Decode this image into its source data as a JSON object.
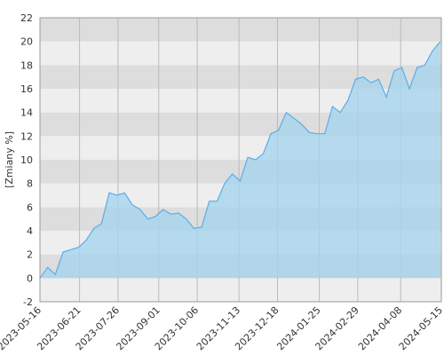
{
  "chart_data": {
    "type": "area",
    "y_label": "[Zmiany %]",
    "x": [
      "2023-05-16",
      "2023-05-23",
      "2023-05-30",
      "2023-06-06",
      "2023-06-13",
      "2023-06-20",
      "2023-06-27",
      "2023-07-04",
      "2023-07-11",
      "2023-07-18",
      "2023-07-25",
      "2023-08-01",
      "2023-08-08",
      "2023-08-15",
      "2023-08-22",
      "2023-08-29",
      "2023-09-05",
      "2023-09-12",
      "2023-09-19",
      "2023-09-26",
      "2023-10-03",
      "2023-10-10",
      "2023-10-17",
      "2023-10-24",
      "2023-10-31",
      "2023-11-07",
      "2023-11-14",
      "2023-11-21",
      "2023-11-28",
      "2023-12-05",
      "2023-12-12",
      "2023-12-19",
      "2023-12-26",
      "2024-01-02",
      "2024-01-09",
      "2024-01-16",
      "2024-01-23",
      "2024-01-30",
      "2024-02-06",
      "2024-02-13",
      "2024-02-20",
      "2024-02-27",
      "2024-03-05",
      "2024-03-12",
      "2024-03-19",
      "2024-03-26",
      "2024-04-02",
      "2024-04-09",
      "2024-04-16",
      "2024-04-23",
      "2024-04-30",
      "2024-05-07",
      "2024-05-14"
    ],
    "series": [
      {
        "color": "#5aaeea",
        "fill": "#a6d3ec",
        "values": [
          0,
          0.9,
          0.3,
          2.2,
          2.4,
          2.6,
          3.2,
          4.2,
          4.6,
          7.2,
          7.0,
          7.2,
          6.2,
          5.8,
          5.0,
          5.2,
          5.8,
          5.4,
          5.5,
          5.0,
          4.2,
          4.3,
          6.5,
          6.5,
          8.0,
          8.8,
          8.2,
          10.2,
          10.0,
          10.5,
          12.2,
          12.5,
          14.0,
          13.5,
          13.0,
          12.3,
          12.2,
          12.2,
          14.5,
          14.0,
          15.0,
          16.8,
          17.0,
          16.5,
          16.8,
          15.3,
          17.5,
          17.8,
          16.0,
          17.8,
          18.0,
          19.2,
          20.0
        ]
      }
    ],
    "xlim": [
      "2023-05-16",
      "2024-05-15"
    ],
    "xticks": [
      "2023-05-16",
      "2023-06-21",
      "2023-07-26",
      "2023-09-01",
      "2023-10-06",
      "2023-11-13",
      "2023-12-18",
      "2024-01-25",
      "2024-02-29",
      "2024-04-08",
      "2024-05-15"
    ],
    "ylim": [
      -2,
      22
    ],
    "yticks": [
      -2,
      0,
      2,
      4,
      6,
      8,
      10,
      12,
      14,
      16,
      18,
      20,
      22
    ],
    "grid": true,
    "band_colors": [
      "#eeeeee",
      "#dddddd"
    ]
  }
}
